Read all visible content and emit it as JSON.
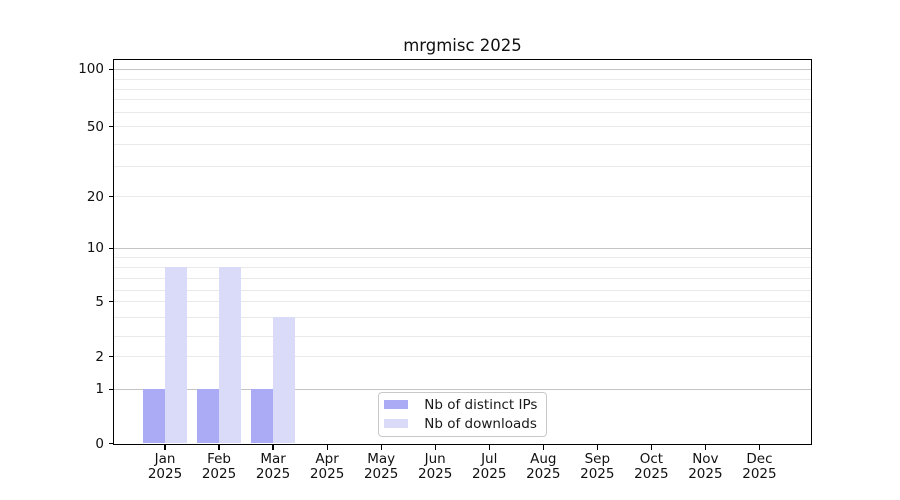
{
  "chart_data": {
    "type": "bar",
    "title": "mrgmisc 2025",
    "categories": [
      "Jan 2025",
      "Feb 2025",
      "Mar 2025",
      "Apr 2025",
      "May 2025",
      "Jun 2025",
      "Jul 2025",
      "Aug 2025",
      "Sep 2025",
      "Oct 2025",
      "Nov 2025",
      "Dec 2025"
    ],
    "month_labels": [
      "Jan",
      "Feb",
      "Mar",
      "Apr",
      "May",
      "Jun",
      "Jul",
      "Aug",
      "Sep",
      "Oct",
      "Nov",
      "Dec"
    ],
    "year_label": "2025",
    "series": [
      {
        "name": "Nb of distinct IPs",
        "color": "#aaaaf5",
        "values": [
          1,
          1,
          1,
          0,
          0,
          0,
          0,
          0,
          0,
          0,
          0,
          0
        ]
      },
      {
        "name": "Nb of downloads",
        "color": "#dadaf9",
        "values": [
          8,
          8,
          4,
          0,
          0,
          0,
          0,
          0,
          0,
          0,
          0,
          0
        ]
      }
    ],
    "xlabel": "",
    "ylabel": "",
    "ylim": [
      0,
      113
    ],
    "y_scale": "log-like (log above ~4, compressed toward 0, true 0 baseline shown)",
    "y_tick_labels": [
      0,
      1,
      2,
      5,
      10,
      20,
      50,
      100
    ],
    "y_gridline_values": [
      1,
      2,
      3,
      4,
      5,
      6,
      7,
      8,
      9,
      10,
      20,
      30,
      40,
      50,
      60,
      70,
      80,
      90,
      100
    ],
    "y_major_gridline_values": [
      1,
      10,
      100
    ],
    "grid": "horizontal only",
    "legend": {
      "position": "lower center",
      "entries": [
        "Nb of distinct IPs",
        "Nb of downloads"
      ]
    },
    "colors": {
      "distinct_ips_bar": "#aaaaf5",
      "downloads_bar": "#dadaf9",
      "grid_minor": "#e9e9e9",
      "grid_major": "#c4c4c4",
      "axis": "#000000",
      "text": "#191919",
      "legend_border": "#c9c9c9",
      "background": "#ffffff"
    },
    "scale_anchors": [
      [
        0,
        443.5
      ],
      [
        1,
        389.3
      ],
      [
        2,
        356.7
      ],
      [
        3,
        336.0
      ],
      [
        4,
        317.3
      ],
      [
        5,
        301.7
      ],
      [
        6,
        290.0
      ],
      [
        7,
        278.3
      ],
      [
        8,
        267.3
      ],
      [
        9,
        257.3
      ],
      [
        10,
        248.3
      ],
      [
        20,
        196.7
      ],
      [
        30,
        166.0
      ],
      [
        40,
        144.0
      ],
      [
        50,
        126.7
      ],
      [
        60,
        112.0
      ],
      [
        70,
        99.3
      ],
      [
        80,
        89.3
      ],
      [
        90,
        79.3
      ],
      [
        100,
        69.3
      ]
    ]
  }
}
